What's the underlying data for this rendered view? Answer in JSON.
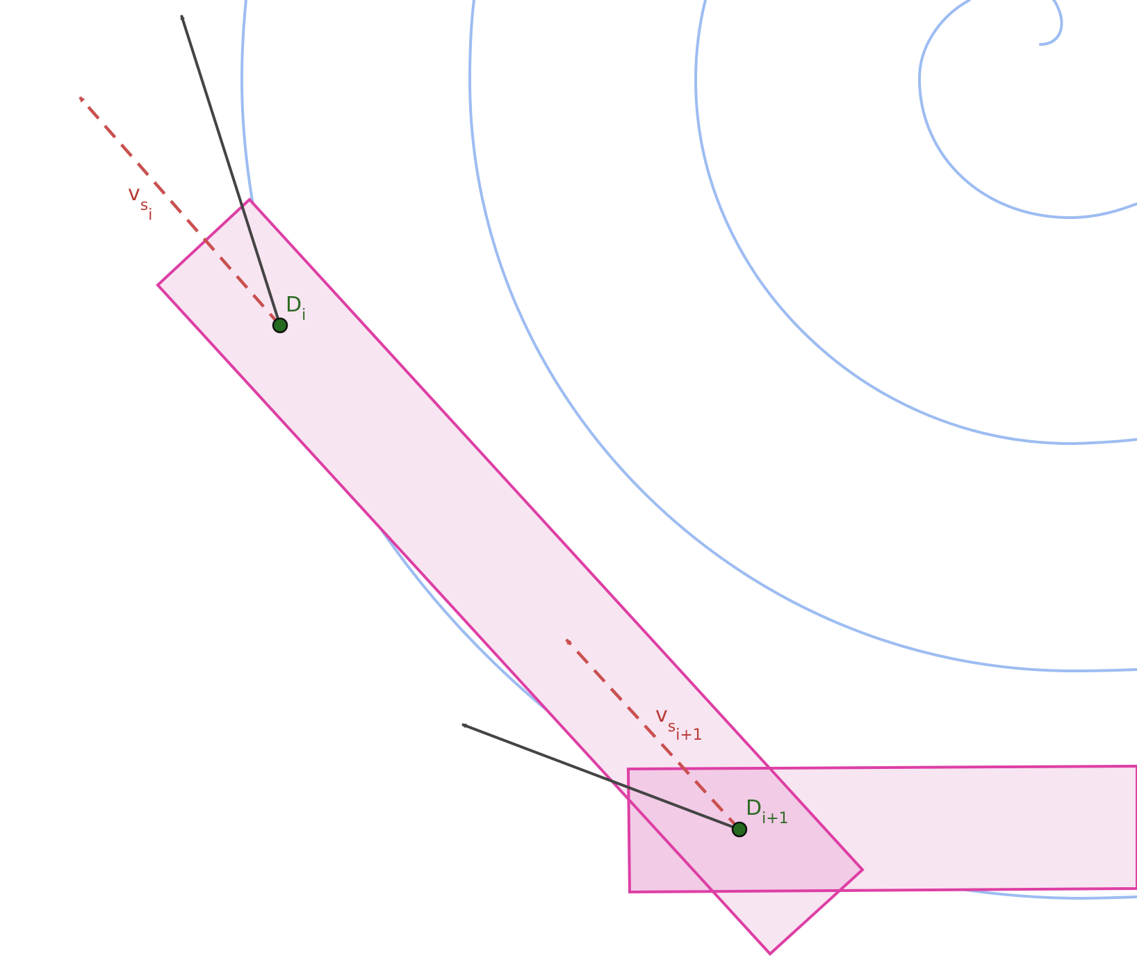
{
  "colors": {
    "background": "#ffffff",
    "spiral": "#9dbcf2",
    "band_stroke": "#dd3fa4",
    "band_fill": "#f8e5f2",
    "band_overlap_fill": "#f2cbe6",
    "tangent_arrow": "#444444",
    "direction_arrow": "#c9504f",
    "point_fill": "#256a1f",
    "point_label": "#2e6b25",
    "vector_label": "#b83a34"
  },
  "labels": {
    "point_i": {
      "main": "D",
      "sub": "i"
    },
    "point_i1": {
      "main": "D",
      "sub": "i+1"
    },
    "vector_i": {
      "main": "v",
      "sub": "s",
      "subsub": "i"
    },
    "vector_i1": {
      "main": "v",
      "sub": "s",
      "subsub": "i+1"
    }
  },
  "icons": {
    "point_marker": "filled-circle",
    "arrow_head": "triangle-arrowhead"
  }
}
